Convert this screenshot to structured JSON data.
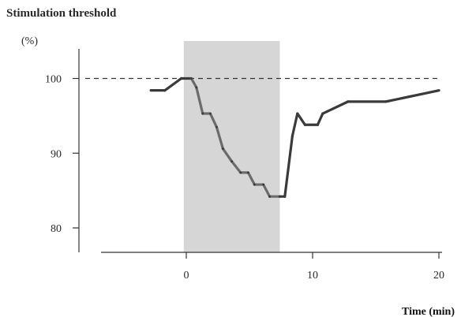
{
  "chart_data": {
    "type": "line",
    "title": "Stimulation threshold",
    "ylabel": "(%)",
    "xlabel": "Time (min)",
    "xlim": [
      -7,
      20
    ],
    "ylim": [
      77,
      104
    ],
    "x_ticks": [
      0,
      10,
      20
    ],
    "y_ticks": [
      80,
      90,
      100
    ],
    "x_tick_labels": [
      "0",
      "10",
      "20"
    ],
    "y_tick_labels": [
      "80",
      "90",
      "100"
    ],
    "reference_line": {
      "y": 100,
      "style": "dashed"
    },
    "shaded_interval": {
      "x": [
        -0.2,
        7.4
      ],
      "color": "#d6d6d6"
    },
    "series": [
      {
        "color_pre": "#3a3a3a",
        "color_during": "#6b6b6b",
        "color_post": "#3a3a3a",
        "points": [
          {
            "x": -2.8,
            "y": 98.4
          },
          {
            "x": -1.7,
            "y": 98.4
          },
          {
            "x": -0.4,
            "y": 100.0
          },
          {
            "x": 0.4,
            "y": 100.0
          },
          {
            "x": 0.8,
            "y": 98.8
          },
          {
            "x": 1.3,
            "y": 95.3
          },
          {
            "x": 1.9,
            "y": 95.3
          },
          {
            "x": 2.4,
            "y": 93.5
          },
          {
            "x": 2.9,
            "y": 90.6
          },
          {
            "x": 3.6,
            "y": 88.9
          },
          {
            "x": 4.3,
            "y": 87.4
          },
          {
            "x": 4.9,
            "y": 87.4
          },
          {
            "x": 5.4,
            "y": 85.8
          },
          {
            "x": 6.1,
            "y": 85.8
          },
          {
            "x": 6.6,
            "y": 84.2
          },
          {
            "x": 7.4,
            "y": 84.2
          },
          {
            "x": 7.8,
            "y": 84.2
          },
          {
            "x": 8.4,
            "y": 92.3
          },
          {
            "x": 8.8,
            "y": 95.3
          },
          {
            "x": 9.4,
            "y": 93.8
          },
          {
            "x": 10.4,
            "y": 93.8
          },
          {
            "x": 10.8,
            "y": 95.3
          },
          {
            "x": 12.8,
            "y": 96.9
          },
          {
            "x": 15.8,
            "y": 96.9
          },
          {
            "x": 20.0,
            "y": 98.4
          }
        ]
      }
    ]
  }
}
